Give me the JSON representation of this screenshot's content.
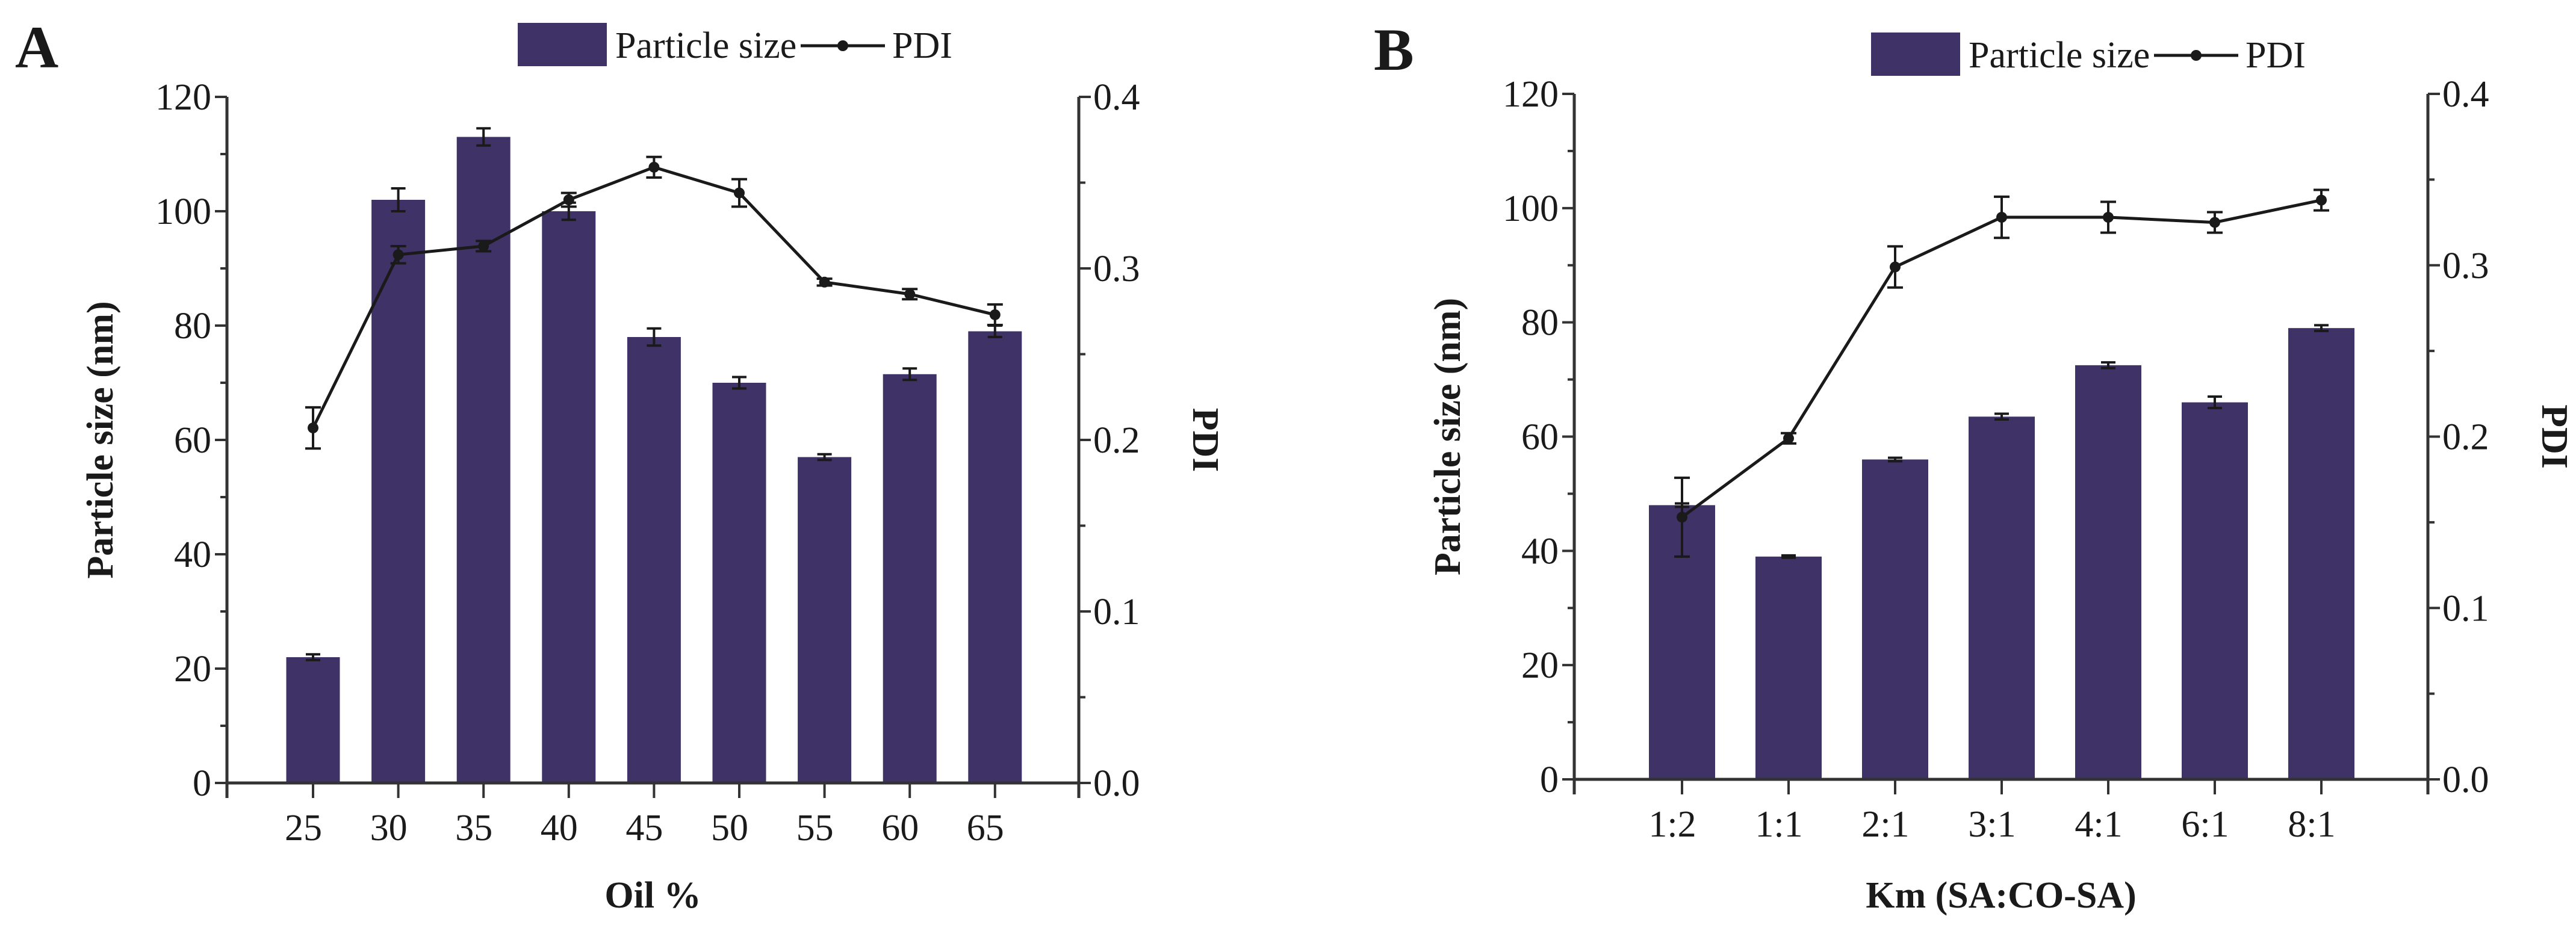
{
  "colors": {
    "bar": "#3f3267",
    "line": "#1a1a1a",
    "axis": "#333333"
  },
  "chart_data": [
    {
      "panel_label": "A",
      "type": "bar+line",
      "categories": [
        "25",
        "30",
        "35",
        "40",
        "45",
        "50",
        "55",
        "60",
        "65"
      ],
      "xlabel": "Oil %",
      "ylabel": "Particle size (nm)",
      "y2label": "PDI",
      "ylim": [
        0,
        120
      ],
      "y2lim": [
        0.0,
        0.4
      ],
      "yticks": [
        "0",
        "20",
        "40",
        "60",
        "80",
        "100",
        "120"
      ],
      "y2ticks": [
        "0.0",
        "0.1",
        "0.2",
        "0.3",
        "0.4"
      ],
      "legend": {
        "bar": "Particle size",
        "line": "PDI",
        "placement": "top-center"
      },
      "series": [
        {
          "name": "Particle size",
          "axis": "left",
          "type": "bar",
          "values": [
            22,
            102,
            113,
            100,
            78,
            70,
            57,
            71.5,
            79
          ],
          "errors": [
            0.5,
            2,
            1.5,
            1.5,
            1.5,
            1,
            0.5,
            1,
            1
          ]
        },
        {
          "name": "PDI",
          "axis": "right",
          "type": "line",
          "values": [
            0.207,
            0.308,
            0.313,
            0.34,
            0.359,
            0.344,
            0.292,
            0.285,
            0.273
          ],
          "errors": [
            0.012,
            0.005,
            0.003,
            0.004,
            0.006,
            0.008,
            0.002,
            0.003,
            0.006
          ]
        }
      ]
    },
    {
      "panel_label": "B",
      "type": "bar+line",
      "categories": [
        "1:2",
        "1:1",
        "2:1",
        "3:1",
        "4:1",
        "6:1",
        "8:1"
      ],
      "xlabel": "Km (SA:CO-SA)",
      "ylabel": "Particle size (nm)",
      "y2label": "PDI",
      "ylim": [
        0,
        120
      ],
      "y2lim": [
        0.0,
        0.4
      ],
      "yticks": [
        "0",
        "20",
        "40",
        "60",
        "80",
        "100",
        "120"
      ],
      "y2ticks": [
        "0.0",
        "0.1",
        "0.2",
        "0.3",
        "0.4"
      ],
      "legend": {
        "bar": "Particle size",
        "line": "PDI",
        "placement": "top-center"
      },
      "series": [
        {
          "name": "Particle size",
          "axis": "left",
          "type": "bar",
          "values": [
            48,
            39,
            56,
            63.5,
            72.5,
            66,
            79
          ],
          "errors": [
            0.3,
            0.2,
            0.3,
            0.5,
            0.5,
            1,
            0.5
          ]
        },
        {
          "name": "PDI",
          "axis": "right",
          "type": "line",
          "values": [
            0.153,
            0.199,
            0.299,
            0.328,
            0.328,
            0.325,
            0.338
          ],
          "errors": [
            0.023,
            0.003,
            0.012,
            0.012,
            0.009,
            0.006,
            0.006
          ]
        }
      ]
    }
  ]
}
